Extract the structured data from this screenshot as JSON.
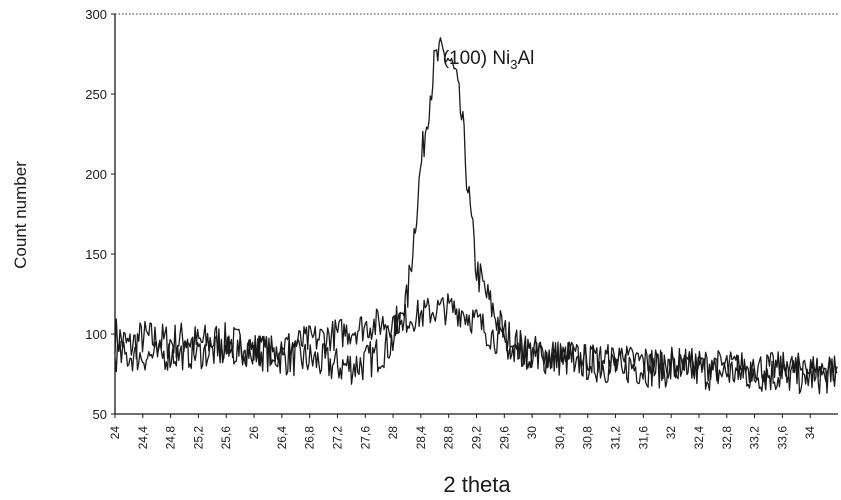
{
  "chart_data": {
    "type": "line",
    "xlabel": "2 theta",
    "ylabel": "Count number",
    "xlim": [
      24,
      34.4
    ],
    "ylim": [
      50,
      300
    ],
    "y_ticks": [
      50,
      100,
      150,
      200,
      250,
      300
    ],
    "x_ticks": [
      24,
      24.4,
      24.8,
      25.2,
      25.6,
      26,
      26.4,
      26.8,
      27.2,
      27.6,
      28,
      28.4,
      28.8,
      29.2,
      29.6,
      30,
      30.4,
      30.8,
      31.2,
      31.6,
      32,
      32.4,
      32.8,
      33.2,
      33.6,
      34
    ],
    "x_tick_labels": [
      "24",
      "24,4",
      "24,8",
      "25,2",
      "25,6",
      "26",
      "26,4",
      "26,8",
      "27,2",
      "27,6",
      "28",
      "28,4",
      "28,8",
      "29,2",
      "29,6",
      "30",
      "30,4",
      "30,8",
      "31,2",
      "31,6",
      "32",
      "32,4",
      "32,8",
      "33,2",
      "33,6",
      "34"
    ],
    "top_gridline": true,
    "annotation": {
      "text_prefix": "(100) Ni",
      "subscript": "3",
      "text_suffix": "Al",
      "x": 28.8,
      "y": 265
    },
    "series": [
      {
        "color": "#1a1a1a",
        "x": [
          24,
          24.2,
          24.4,
          24.6,
          24.8,
          25,
          25.2,
          25.4,
          25.6,
          25.8,
          26,
          26.2,
          26.4,
          26.6,
          26.8,
          27,
          27.2,
          27.4,
          27.6,
          27.8,
          28,
          28.2,
          28.4,
          28.5,
          28.6,
          28.7,
          28.8,
          28.9,
          29,
          29.1,
          29.2,
          29.4,
          29.6,
          29.8,
          30,
          30.2,
          30.4,
          30.6,
          30.8,
          31,
          31.2,
          31.4,
          31.6,
          31.8,
          32,
          32.2,
          32.4,
          32.6,
          32.8,
          33,
          33.2,
          33.4,
          33.6,
          33.8,
          34,
          34.2,
          34.4
        ],
        "y": [
          100,
          92,
          98,
          96,
          95,
          97,
          94,
          96,
          95,
          93,
          90,
          88,
          86,
          85,
          84,
          82,
          80,
          80,
          82,
          88,
          96,
          120,
          205,
          240,
          270,
          275,
          272,
          260,
          230,
          180,
          140,
          118,
          100,
          92,
          88,
          86,
          85,
          84,
          82,
          81,
          80,
          80,
          79,
          78,
          78,
          78,
          77,
          76,
          76,
          76,
          75,
          75,
          74,
          74,
          74,
          74,
          74
        ]
      },
      {
        "color": "#1a1a1a",
        "x": [
          24,
          24.4,
          24.8,
          25.2,
          25.6,
          26,
          26.4,
          26.8,
          27.2,
          27.6,
          28,
          28.2,
          28.4,
          28.6,
          28.8,
          29,
          29.2,
          29.4,
          29.6,
          29.8,
          30,
          30.4,
          30.8,
          31.2,
          31.6,
          32,
          32.4,
          32.8,
          33.2,
          33.6,
          34,
          34.4
        ],
        "y": [
          86,
          86,
          87,
          88,
          89,
          90,
          92,
          96,
          100,
          105,
          108,
          110,
          112,
          115,
          116,
          114,
          108,
          100,
          94,
          90,
          88,
          86,
          85,
          84,
          83,
          82,
          81,
          80,
          79,
          79,
          78,
          78
        ]
      }
    ]
  }
}
